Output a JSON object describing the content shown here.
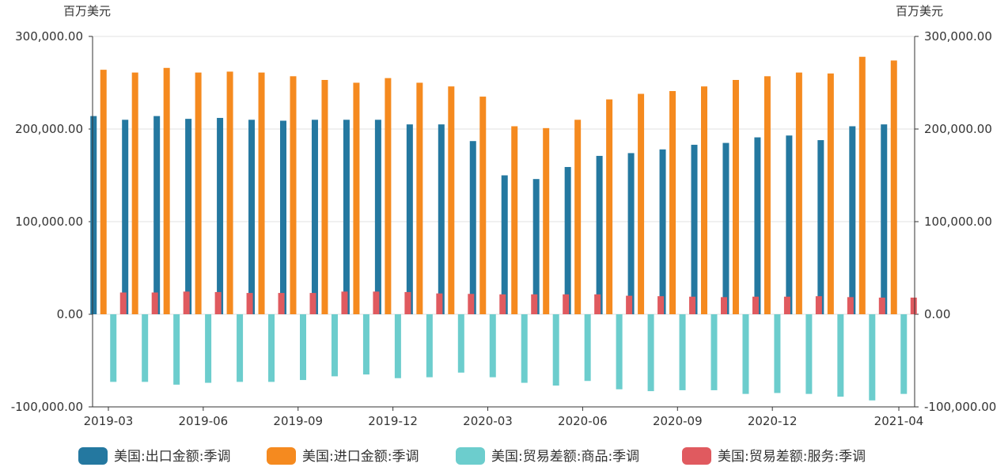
{
  "chart_data": {
    "type": "bar",
    "left_unit": "百万美元",
    "right_unit": "百万美元",
    "ylim": [
      -100000,
      300000
    ],
    "y_ticks": [
      300000,
      200000,
      100000,
      0,
      -100000
    ],
    "y_tick_labels": [
      "300,000.00",
      "200,000.00",
      "100,000.00",
      "0.00",
      "-100,000.00"
    ],
    "categories": [
      "2019-03",
      "2019-04",
      "2019-05",
      "2019-06",
      "2019-07",
      "2019-08",
      "2019-09",
      "2019-10",
      "2019-11",
      "2019-12",
      "2020-01",
      "2020-02",
      "2020-03",
      "2020-04",
      "2020-05",
      "2020-06",
      "2020-07",
      "2020-08",
      "2020-09",
      "2020-10",
      "2020-11",
      "2020-12",
      "2021-01",
      "2021-02",
      "2021-03",
      "2021-04"
    ],
    "x_tick_labels": [
      {
        "index": 0,
        "label": "2019-03"
      },
      {
        "index": 3,
        "label": "2019-06"
      },
      {
        "index": 6,
        "label": "2019-09"
      },
      {
        "index": 9,
        "label": "2019-12"
      },
      {
        "index": 12,
        "label": "2020-03"
      },
      {
        "index": 15,
        "label": "2020-06"
      },
      {
        "index": 18,
        "label": "2020-09"
      },
      {
        "index": 21,
        "label": "2020-12"
      },
      {
        "index": 25,
        "label": "2021-04"
      }
    ],
    "series": [
      {
        "name": "美国:出口金额:季调",
        "color": "#2478a0",
        "values": [
          214000,
          210000,
          214000,
          211000,
          212000,
          210000,
          209000,
          210000,
          210000,
          210000,
          205000,
          205000,
          187000,
          150000,
          146000,
          159000,
          171000,
          174000,
          178000,
          183000,
          185000,
          191000,
          193000,
          188000,
          203000,
          205000
        ]
      },
      {
        "name": "美国:进口金额:季调",
        "color": "#f58a1f",
        "values": [
          264000,
          261000,
          266000,
          261000,
          262000,
          261000,
          257000,
          253000,
          250000,
          255000,
          250000,
          246000,
          235000,
          203000,
          201000,
          210000,
          232000,
          238000,
          241000,
          246000,
          253000,
          257000,
          261000,
          260000,
          278000,
          274000
        ]
      },
      {
        "name": "美国:贸易差额:商品:季调",
        "color": "#6ccdcd",
        "values": [
          -73000,
          -73000,
          -76000,
          -74000,
          -73000,
          -73000,
          -71000,
          -67000,
          -65000,
          -69000,
          -68000,
          -63000,
          -68000,
          -74000,
          -77000,
          -72000,
          -81000,
          -83000,
          -82000,
          -82000,
          -86000,
          -85000,
          -86000,
          -89000,
          -93000,
          -86000
        ]
      },
      {
        "name": "美国:贸易差额:服务:季调",
        "color": "#e05a5f",
        "values": [
          23500,
          23500,
          24500,
          24000,
          23000,
          23000,
          23000,
          24500,
          24500,
          24000,
          22500,
          22000,
          21500,
          21500,
          21500,
          21500,
          20000,
          19500,
          19000,
          18500,
          19000,
          19000,
          19500,
          18500,
          18000,
          18000
        ]
      }
    ]
  }
}
